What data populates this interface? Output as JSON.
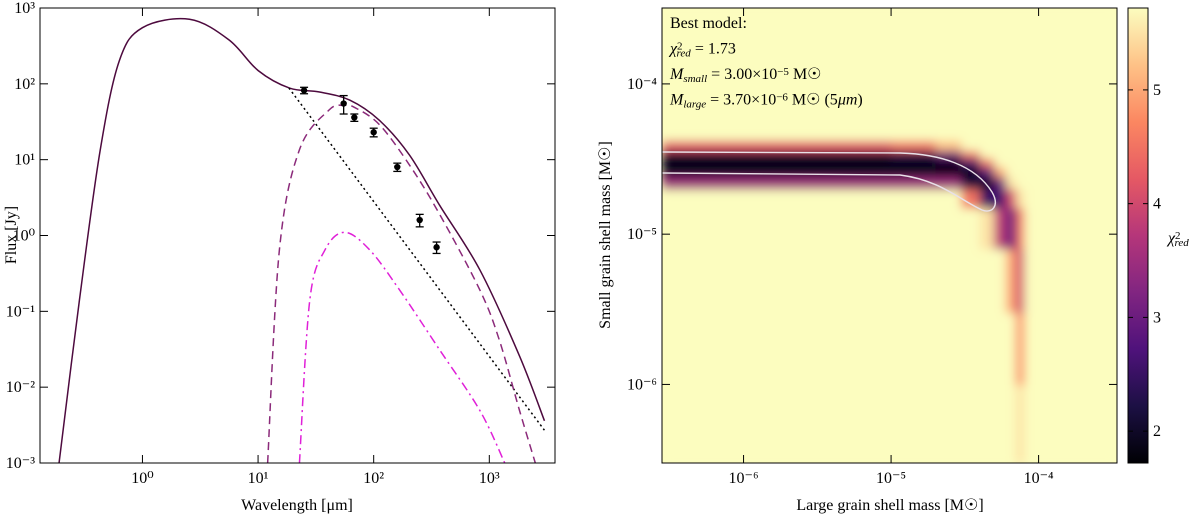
{
  "chart_data": [
    {
      "type": "line",
      "xlabel": "Wavelength [μm]",
      "ylabel": "Flux [Jy]",
      "xscale": "log",
      "yscale": "log",
      "xlim": [
        0.13,
        3700
      ],
      "ylim": [
        0.001,
        1000
      ],
      "xticks": [
        {
          "value": 1,
          "label": "10⁰"
        },
        {
          "value": 10,
          "label": "10¹"
        },
        {
          "value": 100,
          "label": "10²"
        },
        {
          "value": 1000,
          "label": "10³"
        }
      ],
      "yticks": [
        {
          "value": 0.001,
          "label": "10⁻³"
        },
        {
          "value": 0.01,
          "label": "10⁻²"
        },
        {
          "value": 0.1,
          "label": "10⁻¹"
        },
        {
          "value": 1,
          "label": "10⁰"
        },
        {
          "value": 10,
          "label": "10¹"
        },
        {
          "value": 100,
          "label": "10²"
        },
        {
          "value": 1000,
          "label": "10³"
        }
      ],
      "series": [
        {
          "color": "#4d0a3e",
          "style": "solid",
          "x": [
            0.19,
            0.285,
            0.43,
            0.63,
            1,
            2.55,
            5.6,
            10,
            18.7,
            34,
            62,
            112,
            204,
            372,
            830,
            1820,
            3000
          ],
          "values": [
            0.001,
            0.14,
            13,
            200,
            550,
            710,
            380,
            150,
            88,
            78,
            61,
            33,
            11.5,
            2.5,
            0.35,
            0.026,
            0.0036
          ]
        },
        {
          "color": "#000000",
          "style": "dotted",
          "x": [
            18.5,
            3000
          ],
          "values": [
            88,
            0.0027
          ]
        },
        {
          "color": "#8b2a7a",
          "style": "dashed",
          "x": [
            12.1,
            15.3,
            22.8,
            41,
            55,
            68,
            112,
            204,
            372,
            830,
            1220,
            1820,
            2500
          ],
          "values": [
            0.001,
            0.65,
            13.5,
            45,
            52,
            49,
            29,
            8.5,
            1.9,
            0.19,
            0.042,
            0.005,
            0.001
          ]
        },
        {
          "color": "#e020d8",
          "style": "dashdot",
          "x": [
            22.8,
            28,
            38,
            56,
            92,
            168,
            372,
            830,
            1360
          ],
          "values": [
            0.001,
            0.14,
            0.65,
            1.1,
            0.65,
            0.19,
            0.031,
            0.0049,
            0.001
          ]
        }
      ],
      "points": {
        "color": "#000000",
        "x": [
          25,
          55,
          68,
          100,
          160,
          250,
          350
        ],
        "values": [
          82,
          55,
          36,
          23,
          8,
          1.6,
          0.7
        ],
        "errors": [
          8,
          15,
          4,
          3,
          1,
          0.3,
          0.12
        ]
      }
    },
    {
      "type": "heatmap",
      "xlabel": "Large grain shell mass [M☉]",
      "ylabel": "Small grain shell mass [M☉]",
      "xscale": "log",
      "yscale": "log",
      "xlim": [
        2.8e-07,
        0.00034
      ],
      "ylim": [
        3e-07,
        0.00032
      ],
      "xticks": [
        {
          "value": 1e-06,
          "label": "10⁻⁶"
        },
        {
          "value": 1e-05,
          "label": "10⁻⁵"
        },
        {
          "value": 0.0001,
          "label": "10⁻⁴"
        }
      ],
      "yticks": [
        {
          "value": 1e-06,
          "label": "10⁻⁶"
        },
        {
          "value": 1e-05,
          "label": "10⁻⁵"
        },
        {
          "value": 0.0001,
          "label": "10⁻⁴"
        }
      ],
      "x_edges": [
        2.8e-07,
        1e-05,
        2e-05,
        3e-05,
        4e-05,
        5e-05,
        6e-05,
        7e-05,
        8e-05,
        9e-05,
        0.00034
      ],
      "y_edges": [
        3e-07,
        1e-06,
        3e-06,
        8e-06,
        1.5e-05,
        2e-05,
        2.4e-05,
        2.8e-05,
        3.2e-05,
        3.6e-05,
        4.2e-05,
        0.00032
      ],
      "values": [
        [
          6,
          6,
          6,
          6,
          6,
          6,
          6,
          5.5,
          6,
          6
        ],
        [
          6,
          6,
          6,
          6,
          6,
          6,
          6,
          4.8,
          6,
          6
        ],
        [
          6,
          6,
          6,
          6,
          6,
          6,
          5.0,
          4.0,
          6,
          6
        ],
        [
          6,
          6,
          6,
          6,
          5.5,
          3.8,
          3.0,
          4.5,
          6,
          6
        ],
        [
          6,
          6,
          6,
          4.5,
          2.5,
          2.6,
          4.0,
          5.5,
          6,
          6
        ],
        [
          3.5,
          3.5,
          3.5,
          2.2,
          1.9,
          3.0,
          5.5,
          6,
          6,
          6
        ],
        [
          2.0,
          2.0,
          1.9,
          1.8,
          2.8,
          5.0,
          6,
          6,
          6,
          6
        ],
        [
          1.8,
          1.75,
          1.9,
          2.6,
          4.5,
          6,
          6,
          6,
          6,
          6
        ],
        [
          2.1,
          2.3,
          3.0,
          4.5,
          6,
          6,
          6,
          6,
          6,
          6
        ],
        [
          4.2,
          4.5,
          5.2,
          6,
          6,
          6,
          6,
          6,
          6,
          6
        ],
        [
          6,
          6,
          6,
          6,
          6,
          6,
          6,
          6,
          6,
          6
        ]
      ],
      "colormap": "magma",
      "clim": [
        1.72,
        5.72
      ],
      "cticks": [
        2,
        3,
        4,
        5
      ],
      "clabel": [
        {
          "t": "χ",
          "italic": true
        },
        {
          "t": "2",
          "pos": "sup"
        },
        {
          "t": "red",
          "pos": "sub",
          "italic": true
        }
      ],
      "annotations": [
        [
          {
            "t": "Best model:"
          }
        ],
        [
          {
            "t": "χ",
            "italic": true
          },
          {
            "t": "2",
            "pos": "sup"
          },
          {
            "t": "red",
            "pos": "sub",
            "italic": true
          },
          {
            "t": " = 1.73"
          }
        ],
        [
          {
            "t": "M",
            "italic": true
          },
          {
            "t": "small",
            "pos": "sub",
            "italic": true
          },
          {
            "t": " = 3.00×10"
          },
          {
            "t": "−5",
            "pos": "sup"
          },
          {
            "t": " M☉"
          }
        ],
        [
          {
            "t": "M",
            "italic": true
          },
          {
            "t": "large",
            "pos": "sub",
            "italic": true
          },
          {
            "t": " = 3.70×10"
          },
          {
            "t": "−6",
            "pos": "sup"
          },
          {
            "t": " M☉ (5"
          },
          {
            "t": "μm",
            "italic": true
          },
          {
            "t": ")"
          }
        ]
      ]
    }
  ]
}
